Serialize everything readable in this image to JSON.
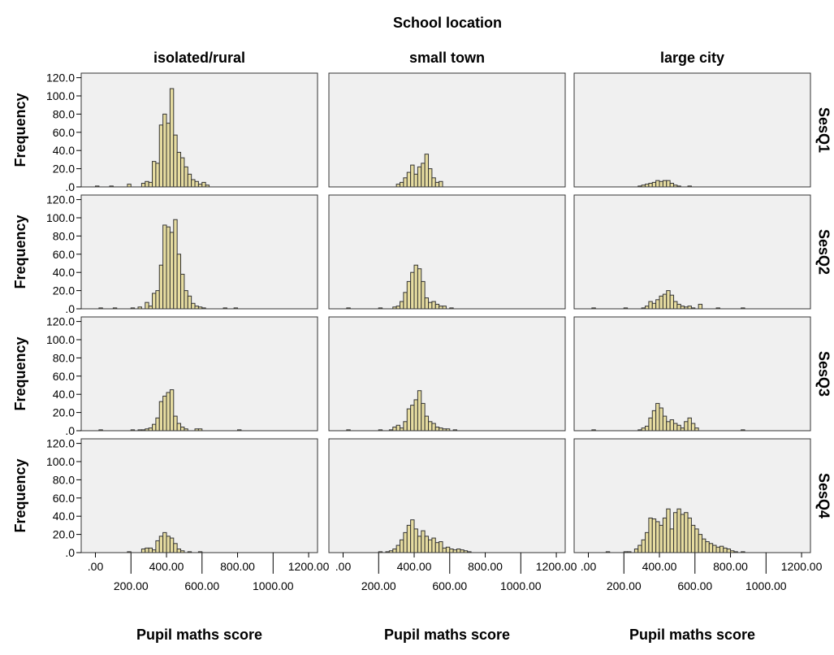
{
  "chart_data": {
    "type": "histogram-panel",
    "title": "School location",
    "xlabel": "Pupil maths score",
    "ylabel": "Frequency",
    "columns": [
      "isolated/rural",
      "small town",
      "large city"
    ],
    "rows": [
      "SesQ1",
      "SesQ2",
      "SesQ3",
      "SesQ4"
    ],
    "xlim": [
      -80,
      1250
    ],
    "ylim": [
      0,
      125
    ],
    "bin_width": 20,
    "x_tick_values": [
      0,
      200,
      400,
      600,
      800,
      1000,
      1200
    ],
    "x_tick_labels": [
      ".00",
      "200.00",
      "400.00",
      "600.00",
      "800.00",
      "1000.00",
      "1200.00"
    ],
    "y_tick_values": [
      0,
      20,
      40,
      60,
      80,
      100,
      120
    ],
    "y_tick_labels": [
      ".0",
      "20.0",
      "40.0",
      "60.0",
      "80.0",
      "100.0",
      "120.0"
    ],
    "colors": {
      "bar_fill": "#e6dca0",
      "bar_stroke": "#333333",
      "panel_bg": "#f0f0f0",
      "panel_border": "#333333"
    },
    "panels": [
      {
        "column": "isolated/rural",
        "row": "SesQ1",
        "bins": [
          [
            0,
            1
          ],
          [
            80,
            1
          ],
          [
            180,
            3
          ],
          [
            260,
            4
          ],
          [
            280,
            6
          ],
          [
            300,
            5
          ],
          [
            320,
            28
          ],
          [
            340,
            26
          ],
          [
            360,
            68
          ],
          [
            380,
            80
          ],
          [
            400,
            70
          ],
          [
            420,
            108
          ],
          [
            440,
            57
          ],
          [
            460,
            38
          ],
          [
            480,
            32
          ],
          [
            500,
            22
          ],
          [
            520,
            14
          ],
          [
            540,
            8
          ],
          [
            560,
            6
          ],
          [
            580,
            3
          ],
          [
            600,
            5
          ],
          [
            620,
            2
          ]
        ]
      },
      {
        "column": "small town",
        "row": "SesQ1",
        "bins": [
          [
            300,
            3
          ],
          [
            320,
            5
          ],
          [
            340,
            10
          ],
          [
            360,
            16
          ],
          [
            380,
            24
          ],
          [
            400,
            14
          ],
          [
            420,
            22
          ],
          [
            440,
            26
          ],
          [
            460,
            36
          ],
          [
            480,
            20
          ],
          [
            500,
            10
          ],
          [
            520,
            5
          ],
          [
            540,
            6
          ]
        ]
      },
      {
        "column": "large city",
        "row": "SesQ1",
        "bins": [
          [
            280,
            1
          ],
          [
            300,
            2
          ],
          [
            320,
            3
          ],
          [
            340,
            4
          ],
          [
            360,
            5
          ],
          [
            380,
            7
          ],
          [
            400,
            6
          ],
          [
            420,
            7
          ],
          [
            440,
            7
          ],
          [
            460,
            4
          ],
          [
            480,
            2
          ],
          [
            500,
            1
          ],
          [
            560,
            1
          ]
        ]
      },
      {
        "column": "isolated/rural",
        "row": "SesQ2",
        "bins": [
          [
            20,
            1
          ],
          [
            100,
            1
          ],
          [
            200,
            1
          ],
          [
            240,
            2
          ],
          [
            280,
            7
          ],
          [
            300,
            3
          ],
          [
            320,
            17
          ],
          [
            340,
            20
          ],
          [
            360,
            48
          ],
          [
            380,
            92
          ],
          [
            400,
            90
          ],
          [
            420,
            84
          ],
          [
            440,
            98
          ],
          [
            460,
            60
          ],
          [
            480,
            38
          ],
          [
            500,
            20
          ],
          [
            520,
            14
          ],
          [
            540,
            6
          ],
          [
            560,
            3
          ],
          [
            580,
            2
          ],
          [
            600,
            1
          ],
          [
            720,
            1
          ],
          [
            780,
            1
          ]
        ]
      },
      {
        "column": "small town",
        "row": "SesQ2",
        "bins": [
          [
            20,
            1
          ],
          [
            200,
            1
          ],
          [
            280,
            2
          ],
          [
            300,
            3
          ],
          [
            320,
            8
          ],
          [
            340,
            18
          ],
          [
            360,
            30
          ],
          [
            380,
            40
          ],
          [
            400,
            48
          ],
          [
            420,
            44
          ],
          [
            440,
            30
          ],
          [
            460,
            12
          ],
          [
            480,
            7
          ],
          [
            500,
            8
          ],
          [
            520,
            5
          ],
          [
            540,
            3
          ],
          [
            560,
            3
          ],
          [
            600,
            1
          ]
        ]
      },
      {
        "column": "large city",
        "row": "SesQ2",
        "bins": [
          [
            20,
            1
          ],
          [
            200,
            1
          ],
          [
            300,
            1
          ],
          [
            320,
            3
          ],
          [
            340,
            8
          ],
          [
            360,
            6
          ],
          [
            380,
            10
          ],
          [
            400,
            14
          ],
          [
            420,
            16
          ],
          [
            440,
            20
          ],
          [
            460,
            15
          ],
          [
            480,
            8
          ],
          [
            500,
            5
          ],
          [
            520,
            3
          ],
          [
            540,
            2
          ],
          [
            560,
            3
          ],
          [
            580,
            1
          ],
          [
            620,
            5
          ],
          [
            720,
            1
          ],
          [
            860,
            1
          ]
        ]
      },
      {
        "column": "isolated/rural",
        "row": "SesQ3",
        "bins": [
          [
            20,
            1
          ],
          [
            200,
            1
          ],
          [
            240,
            1
          ],
          [
            260,
            1
          ],
          [
            280,
            2
          ],
          [
            300,
            3
          ],
          [
            320,
            7
          ],
          [
            340,
            14
          ],
          [
            360,
            32
          ],
          [
            380,
            38
          ],
          [
            400,
            42
          ],
          [
            420,
            45
          ],
          [
            440,
            16
          ],
          [
            460,
            8
          ],
          [
            480,
            4
          ],
          [
            500,
            2
          ],
          [
            560,
            2
          ],
          [
            580,
            2
          ],
          [
            800,
            1
          ]
        ]
      },
      {
        "column": "small town",
        "row": "SesQ3",
        "bins": [
          [
            20,
            1
          ],
          [
            200,
            1
          ],
          [
            260,
            1
          ],
          [
            280,
            4
          ],
          [
            300,
            6
          ],
          [
            320,
            3
          ],
          [
            340,
            10
          ],
          [
            360,
            24
          ],
          [
            380,
            28
          ],
          [
            400,
            34
          ],
          [
            420,
            44
          ],
          [
            440,
            30
          ],
          [
            460,
            16
          ],
          [
            480,
            10
          ],
          [
            500,
            8
          ],
          [
            520,
            4
          ],
          [
            540,
            3
          ],
          [
            560,
            2
          ],
          [
            580,
            2
          ],
          [
            620,
            1
          ]
        ]
      },
      {
        "column": "large city",
        "row": "SesQ3",
        "bins": [
          [
            20,
            1
          ],
          [
            280,
            1
          ],
          [
            300,
            3
          ],
          [
            320,
            5
          ],
          [
            340,
            14
          ],
          [
            360,
            22
          ],
          [
            380,
            30
          ],
          [
            400,
            25
          ],
          [
            420,
            16
          ],
          [
            440,
            10
          ],
          [
            460,
            12
          ],
          [
            480,
            8
          ],
          [
            500,
            6
          ],
          [
            520,
            3
          ],
          [
            540,
            10
          ],
          [
            560,
            14
          ],
          [
            580,
            8
          ],
          [
            600,
            3
          ],
          [
            860,
            1
          ]
        ]
      },
      {
        "column": "isolated/rural",
        "row": "SesQ4",
        "bins": [
          [
            180,
            1
          ],
          [
            260,
            4
          ],
          [
            280,
            5
          ],
          [
            300,
            5
          ],
          [
            320,
            3
          ],
          [
            340,
            13
          ],
          [
            360,
            18
          ],
          [
            380,
            22
          ],
          [
            400,
            18
          ],
          [
            420,
            16
          ],
          [
            440,
            10
          ],
          [
            460,
            4
          ],
          [
            480,
            2
          ],
          [
            520,
            1
          ],
          [
            580,
            1
          ]
        ]
      },
      {
        "column": "small town",
        "row": "SesQ4",
        "bins": [
          [
            200,
            1
          ],
          [
            240,
            1
          ],
          [
            260,
            2
          ],
          [
            280,
            4
          ],
          [
            300,
            8
          ],
          [
            320,
            14
          ],
          [
            340,
            22
          ],
          [
            360,
            30
          ],
          [
            380,
            36
          ],
          [
            400,
            26
          ],
          [
            420,
            18
          ],
          [
            440,
            24
          ],
          [
            460,
            18
          ],
          [
            480,
            14
          ],
          [
            500,
            16
          ],
          [
            520,
            11
          ],
          [
            540,
            12
          ],
          [
            560,
            5
          ],
          [
            580,
            6
          ],
          [
            600,
            4
          ],
          [
            620,
            3
          ],
          [
            640,
            4
          ],
          [
            660,
            3
          ],
          [
            680,
            2
          ],
          [
            700,
            1
          ]
        ]
      },
      {
        "column": "large city",
        "row": "SesQ4",
        "bins": [
          [
            100,
            1
          ],
          [
            200,
            1
          ],
          [
            220,
            1
          ],
          [
            260,
            4
          ],
          [
            280,
            8
          ],
          [
            300,
            14
          ],
          [
            320,
            22
          ],
          [
            340,
            38
          ],
          [
            360,
            37
          ],
          [
            380,
            34
          ],
          [
            400,
            30
          ],
          [
            420,
            38
          ],
          [
            440,
            48
          ],
          [
            460,
            26
          ],
          [
            480,
            44
          ],
          [
            500,
            48
          ],
          [
            520,
            42
          ],
          [
            540,
            44
          ],
          [
            560,
            38
          ],
          [
            580,
            30
          ],
          [
            600,
            26
          ],
          [
            620,
            20
          ],
          [
            640,
            15
          ],
          [
            660,
            12
          ],
          [
            680,
            10
          ],
          [
            700,
            8
          ],
          [
            720,
            6
          ],
          [
            740,
            7
          ],
          [
            760,
            5
          ],
          [
            780,
            4
          ],
          [
            800,
            2
          ],
          [
            820,
            1
          ],
          [
            860,
            1
          ]
        ]
      }
    ]
  }
}
